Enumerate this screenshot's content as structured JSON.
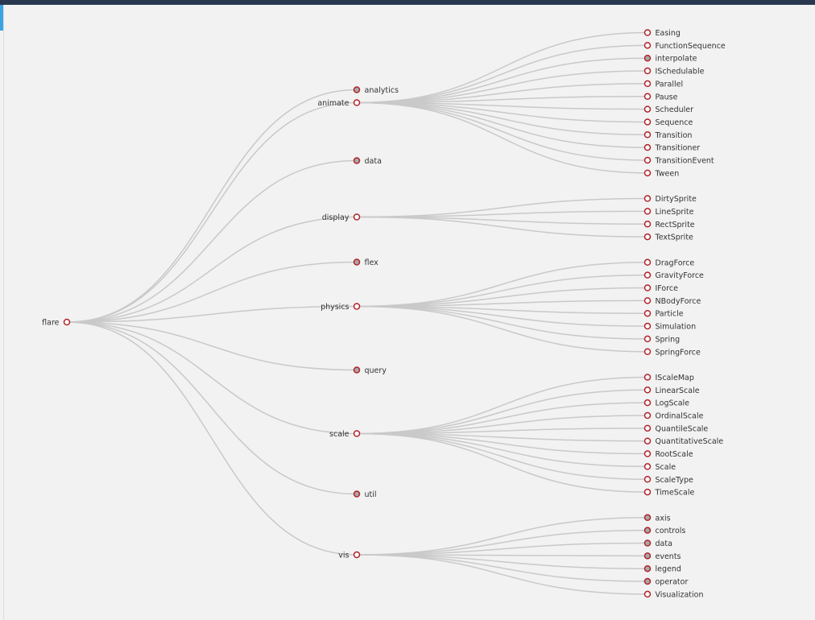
{
  "colors": {
    "background": "#f2f2f2",
    "topbar": "#27384f",
    "accent": "#3aa3e3",
    "link": "#c9c9c9",
    "node_stroke": "#b0232a",
    "collapsed_fill": "#a8a8a8",
    "expanded_fill": "#ffffff"
  },
  "tree": {
    "name": "flare",
    "children": [
      {
        "name": "analytics",
        "collapsed": true
      },
      {
        "name": "animate",
        "children": [
          {
            "name": "Easing"
          },
          {
            "name": "FunctionSequence"
          },
          {
            "name": "interpolate",
            "collapsed": true
          },
          {
            "name": "ISchedulable"
          },
          {
            "name": "Parallel"
          },
          {
            "name": "Pause"
          },
          {
            "name": "Scheduler"
          },
          {
            "name": "Sequence"
          },
          {
            "name": "Transition"
          },
          {
            "name": "Transitioner"
          },
          {
            "name": "TransitionEvent"
          },
          {
            "name": "Tween"
          }
        ]
      },
      {
        "name": "data",
        "collapsed": true
      },
      {
        "name": "display",
        "children": [
          {
            "name": "DirtySprite"
          },
          {
            "name": "LineSprite"
          },
          {
            "name": "RectSprite"
          },
          {
            "name": "TextSprite"
          }
        ]
      },
      {
        "name": "flex",
        "collapsed": true
      },
      {
        "name": "physics",
        "children": [
          {
            "name": "DragForce"
          },
          {
            "name": "GravityForce"
          },
          {
            "name": "IForce"
          },
          {
            "name": "NBodyForce"
          },
          {
            "name": "Particle"
          },
          {
            "name": "Simulation"
          },
          {
            "name": "Spring"
          },
          {
            "name": "SpringForce"
          }
        ]
      },
      {
        "name": "query",
        "collapsed": true
      },
      {
        "name": "scale",
        "children": [
          {
            "name": "IScaleMap"
          },
          {
            "name": "LinearScale"
          },
          {
            "name": "LogScale"
          },
          {
            "name": "OrdinalScale"
          },
          {
            "name": "QuantileScale"
          },
          {
            "name": "QuantitativeScale"
          },
          {
            "name": "RootScale"
          },
          {
            "name": "Scale"
          },
          {
            "name": "ScaleType"
          },
          {
            "name": "TimeScale"
          }
        ]
      },
      {
        "name": "util",
        "collapsed": true
      },
      {
        "name": "vis",
        "children": [
          {
            "name": "axis",
            "collapsed": true
          },
          {
            "name": "controls",
            "collapsed": true
          },
          {
            "name": "data",
            "collapsed": true
          },
          {
            "name": "events",
            "collapsed": true
          },
          {
            "name": "legend",
            "collapsed": true
          },
          {
            "name": "operator",
            "collapsed": true
          },
          {
            "name": "Visualization"
          }
        ]
      }
    ]
  }
}
